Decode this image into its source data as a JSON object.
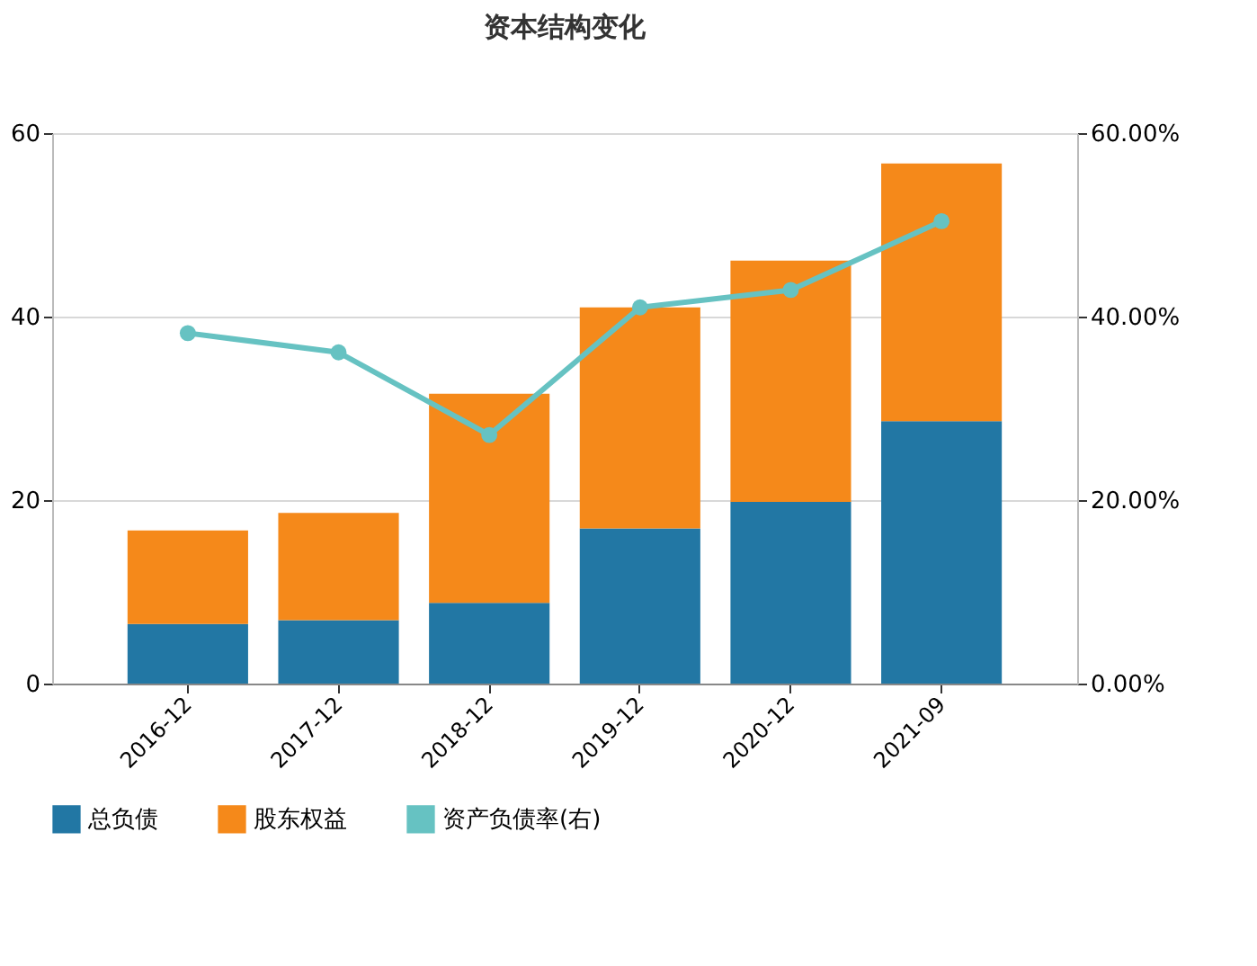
{
  "chart_data": {
    "type": "bar",
    "title": "资本结构变化",
    "stacked": true,
    "categories": [
      "2016-12",
      "2017-12",
      "2018-12",
      "2019-12",
      "2020-12",
      "2021-09"
    ],
    "series": [
      {
        "name": "总负债",
        "color": "#2277a4",
        "values": [
          6.5,
          6.9,
          8.8,
          16.9,
          19.8,
          28.6
        ]
      },
      {
        "name": "股东权益",
        "color": "#f5891a",
        "values": [
          10.2,
          11.7,
          22.8,
          24.1,
          26.3,
          28.1
        ]
      },
      {
        "name": "资产负债率(右)",
        "color": "#66c2c2",
        "type": "line",
        "axis": "y2",
        "marker": "circle",
        "values": [
          38.2,
          36.1,
          27.1,
          41.0,
          42.9,
          50.4
        ]
      }
    ],
    "ylim": [
      0,
      60
    ],
    "yticks": [
      0,
      20,
      40,
      60
    ],
    "y2lim": [
      0,
      60
    ],
    "y2ticks": [
      {
        "value": 0,
        "label": "0.00%"
      },
      {
        "value": 20,
        "label": "20.00%"
      },
      {
        "value": 40,
        "label": "40.00%"
      },
      {
        "value": 60,
        "label": "60.00%"
      }
    ],
    "grid": "y",
    "legend": "bottom"
  }
}
